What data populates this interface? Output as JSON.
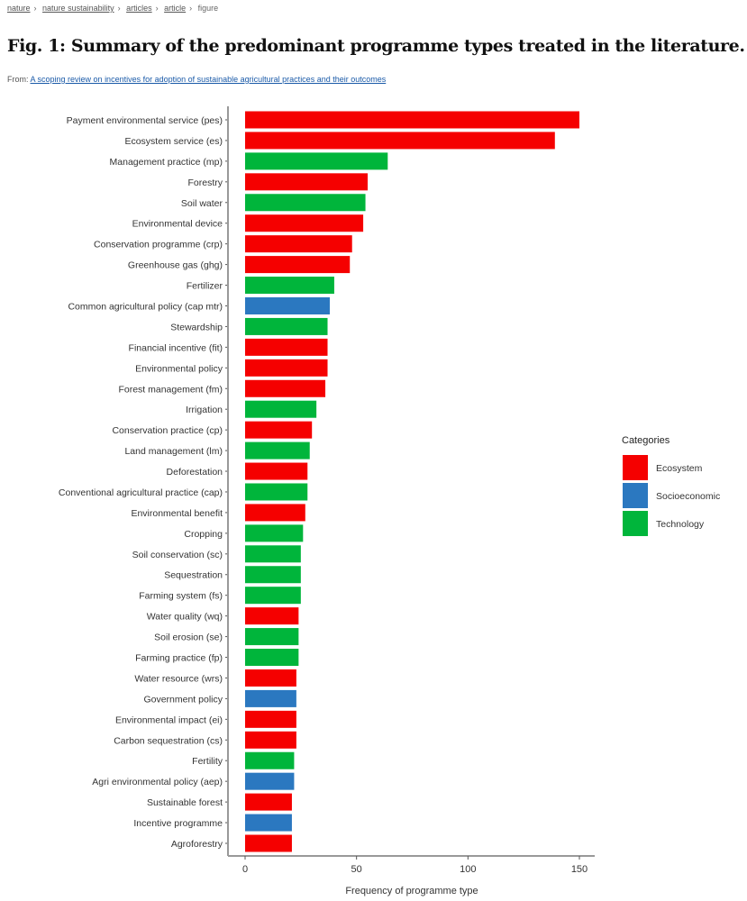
{
  "breadcrumb": [
    "nature",
    "nature sustainability",
    "articles",
    "article",
    "figure"
  ],
  "page_title": "Fig. 1: Summary of the predominant programme types treated in the literature.",
  "from_label": "From:",
  "from_link": "A scoping review on incentives for adoption of sustainable agricultural practices and their outcomes",
  "chart_data": {
    "type": "bar",
    "orientation": "horizontal",
    "title": "",
    "xlabel": "Frequency of programme type",
    "ylabel": "",
    "xlim": [
      0,
      155
    ],
    "xticks": [
      0,
      50,
      100,
      150
    ],
    "grid": false,
    "legend": {
      "title": "Categories",
      "placement": "right",
      "entries": [
        "Ecosystem",
        "Socioeconomic",
        "Technology"
      ]
    },
    "colors": {
      "Ecosystem": "#f50000",
      "Socioeconomic": "#2b78c0",
      "Technology": "#00b53b"
    },
    "categories": [
      "Payment environmental service (pes)",
      "Ecosystem service (es)",
      "Management practice (mp)",
      "Forestry",
      "Soil water",
      "Environmental device",
      "Conservation programme (crp)",
      "Greenhouse gas (ghg)",
      "Fertilizer",
      "Common agricultural policy (cap mtr)",
      "Stewardship",
      "Financial incentive (fit)",
      "Environmental policy",
      "Forest management (fm)",
      "Irrigation",
      "Conservation practice (cp)",
      "Land management (lm)",
      "Deforestation",
      "Conventional agricultural practice (cap)",
      "Environmental benefit",
      "Cropping",
      "Soil conservation (sc)",
      "Sequestration",
      "Farming system (fs)",
      "Water quality (wq)",
      "Soil erosion (se)",
      "Farming practice (fp)",
      "Water resource (wrs)",
      "Government policy",
      "Environmental impact (ei)",
      "Carbon sequestration (cs)",
      "Fertility",
      "Agri environmental policy (aep)",
      "Sustainable forest",
      "Incentive programme",
      "Agroforestry"
    ],
    "values": [
      150,
      139,
      64,
      55,
      54,
      53,
      48,
      47,
      40,
      38,
      37,
      37,
      37,
      36,
      32,
      30,
      29,
      28,
      28,
      27,
      26,
      25,
      25,
      25,
      24,
      24,
      24,
      23,
      23,
      23,
      23,
      22,
      22,
      21,
      21,
      21
    ],
    "category_group": [
      "Ecosystem",
      "Ecosystem",
      "Technology",
      "Ecosystem",
      "Technology",
      "Ecosystem",
      "Ecosystem",
      "Ecosystem",
      "Technology",
      "Socioeconomic",
      "Technology",
      "Ecosystem",
      "Ecosystem",
      "Ecosystem",
      "Technology",
      "Ecosystem",
      "Technology",
      "Ecosystem",
      "Technology",
      "Ecosystem",
      "Technology",
      "Technology",
      "Technology",
      "Technology",
      "Ecosystem",
      "Technology",
      "Technology",
      "Ecosystem",
      "Socioeconomic",
      "Ecosystem",
      "Ecosystem",
      "Technology",
      "Socioeconomic",
      "Ecosystem",
      "Socioeconomic",
      "Ecosystem"
    ]
  }
}
